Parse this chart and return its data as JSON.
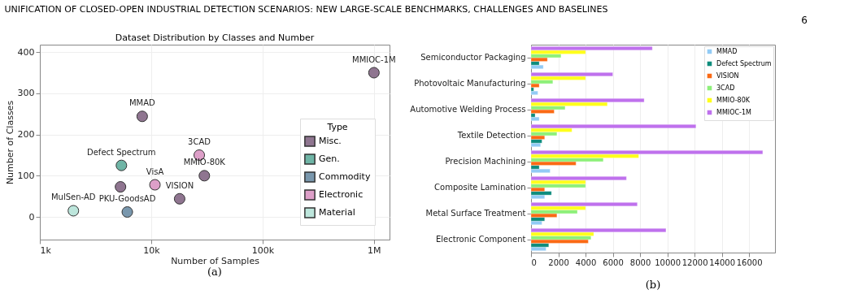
{
  "chart_data": [
    {
      "type": "scatter",
      "title": "Dataset Distribution by Classes and Number",
      "xlabel": "Number of Samples",
      "ylabel": "Number of Classes",
      "legend_title": "Type",
      "series": [
        {
          "name": "Misc.",
          "color": "#8f7590",
          "x": [
            1000000,
            8300,
            30000,
            5300,
            18000
          ],
          "values": [
            350,
            244,
            100,
            73,
            44
          ]
        },
        {
          "name": "Gen.",
          "color": "#6fb5a6",
          "x": [
            5400
          ],
          "values": [
            125
          ]
        },
        {
          "name": "Commodity",
          "color": "#7997ad",
          "x": [
            6100
          ],
          "values": [
            12
          ]
        },
        {
          "name": "Electronic",
          "color": "#dd9fc8",
          "x": [
            27000,
            10800
          ],
          "values": [
            150,
            78
          ]
        },
        {
          "name": "Material",
          "color": "#bde6dc",
          "x": [
            2000
          ],
          "values": [
            15
          ]
        }
      ],
      "annotations": [
        "UNIFICATION OF CLOSED-OPEN INDUSTRIAL DETECTION SCENARIOS: NEW LARGE-SCALE BENCHMARKS, CHALLENGES AND BASELINES",
        "6",
        "(a)",
        {
          "text": "MMIOC-1M",
          "x": 1000000,
          "y": 350
        },
        {
          "text": "MMAD",
          "x": 8300,
          "y": 244
        },
        {
          "text": "3CAD",
          "x": 27000,
          "y": 150
        },
        {
          "text": "Defect Spectrum",
          "x": 5400,
          "y": 125
        },
        {
          "text": "MMIO-80K",
          "x": 30000,
          "y": 100
        },
        {
          "text": "VisA",
          "x": 10800,
          "y": 78
        },
        {
          "text": "VISION",
          "x": 18000,
          "y": 44
        },
        {
          "text": "MulSen-AD",
          "x": 2000,
          "y": 15
        },
        {
          "text": "PKU-GoodsAD",
          "x": 6100,
          "y": 12
        }
      ],
      "xlim": [
        1000,
        1380000
      ],
      "ylim": [
        -55,
        418
      ],
      "xticks": [
        {
          "value": 1000,
          "label": "1k"
        },
        {
          "value": 10000,
          "label": "10k"
        },
        {
          "value": 100000,
          "label": "100k"
        },
        {
          "value": 1000000,
          "label": "1M"
        }
      ],
      "yticks": [
        0,
        100,
        200,
        300,
        400
      ],
      "log": "x",
      "grid": true,
      "legend": "bottom right",
      "marker": "circle"
    },
    {
      "type": "bar",
      "orientation": "horizontal",
      "categories": [
        "Semiconductor Packaging",
        "Photovoltaic Manufacturing",
        "Automotive Welding Process",
        "Textile Detection",
        "Precision Machining",
        "Composite Lamination",
        "Metal Surface Treatment",
        "Electronic Component"
      ],
      "series": [
        {
          "name": "MMAD",
          "color": "#92cbf5",
          "values": [
            900,
            500,
            600,
            700,
            1400,
            1000,
            800,
            1100
          ]
        },
        {
          "name": "Defect Spectrum",
          "color": "#0d8c7c",
          "values": [
            600,
            200,
            300,
            800,
            600,
            1500,
            1000,
            1300
          ]
        },
        {
          "name": "VISION",
          "color": "#fa6a14",
          "values": [
            1200,
            600,
            1700,
            1000,
            3300,
            1000,
            1900,
            4200
          ]
        },
        {
          "name": "3CAD",
          "color": "#8ef07a",
          "values": [
            2200,
            1600,
            2500,
            1900,
            5300,
            4000,
            3400,
            4400
          ]
        },
        {
          "name": "MMIO-80K",
          "color": "#ffff1a",
          "values": [
            4000,
            4000,
            5600,
            3000,
            7900,
            4000,
            4000,
            4600
          ]
        },
        {
          "name": "MMIOC-1M",
          "color": "#bf71ed",
          "values": [
            8900,
            6000,
            8300,
            12100,
            17000,
            7000,
            7800,
            9900
          ]
        }
      ],
      "annotations": [
        "(b)"
      ],
      "xlim": [
        0,
        17900
      ],
      "xticks": [
        0,
        2000,
        4000,
        6000,
        8000,
        10000,
        12000,
        14000,
        16000
      ],
      "grid": "x",
      "legend": "top right"
    }
  ]
}
